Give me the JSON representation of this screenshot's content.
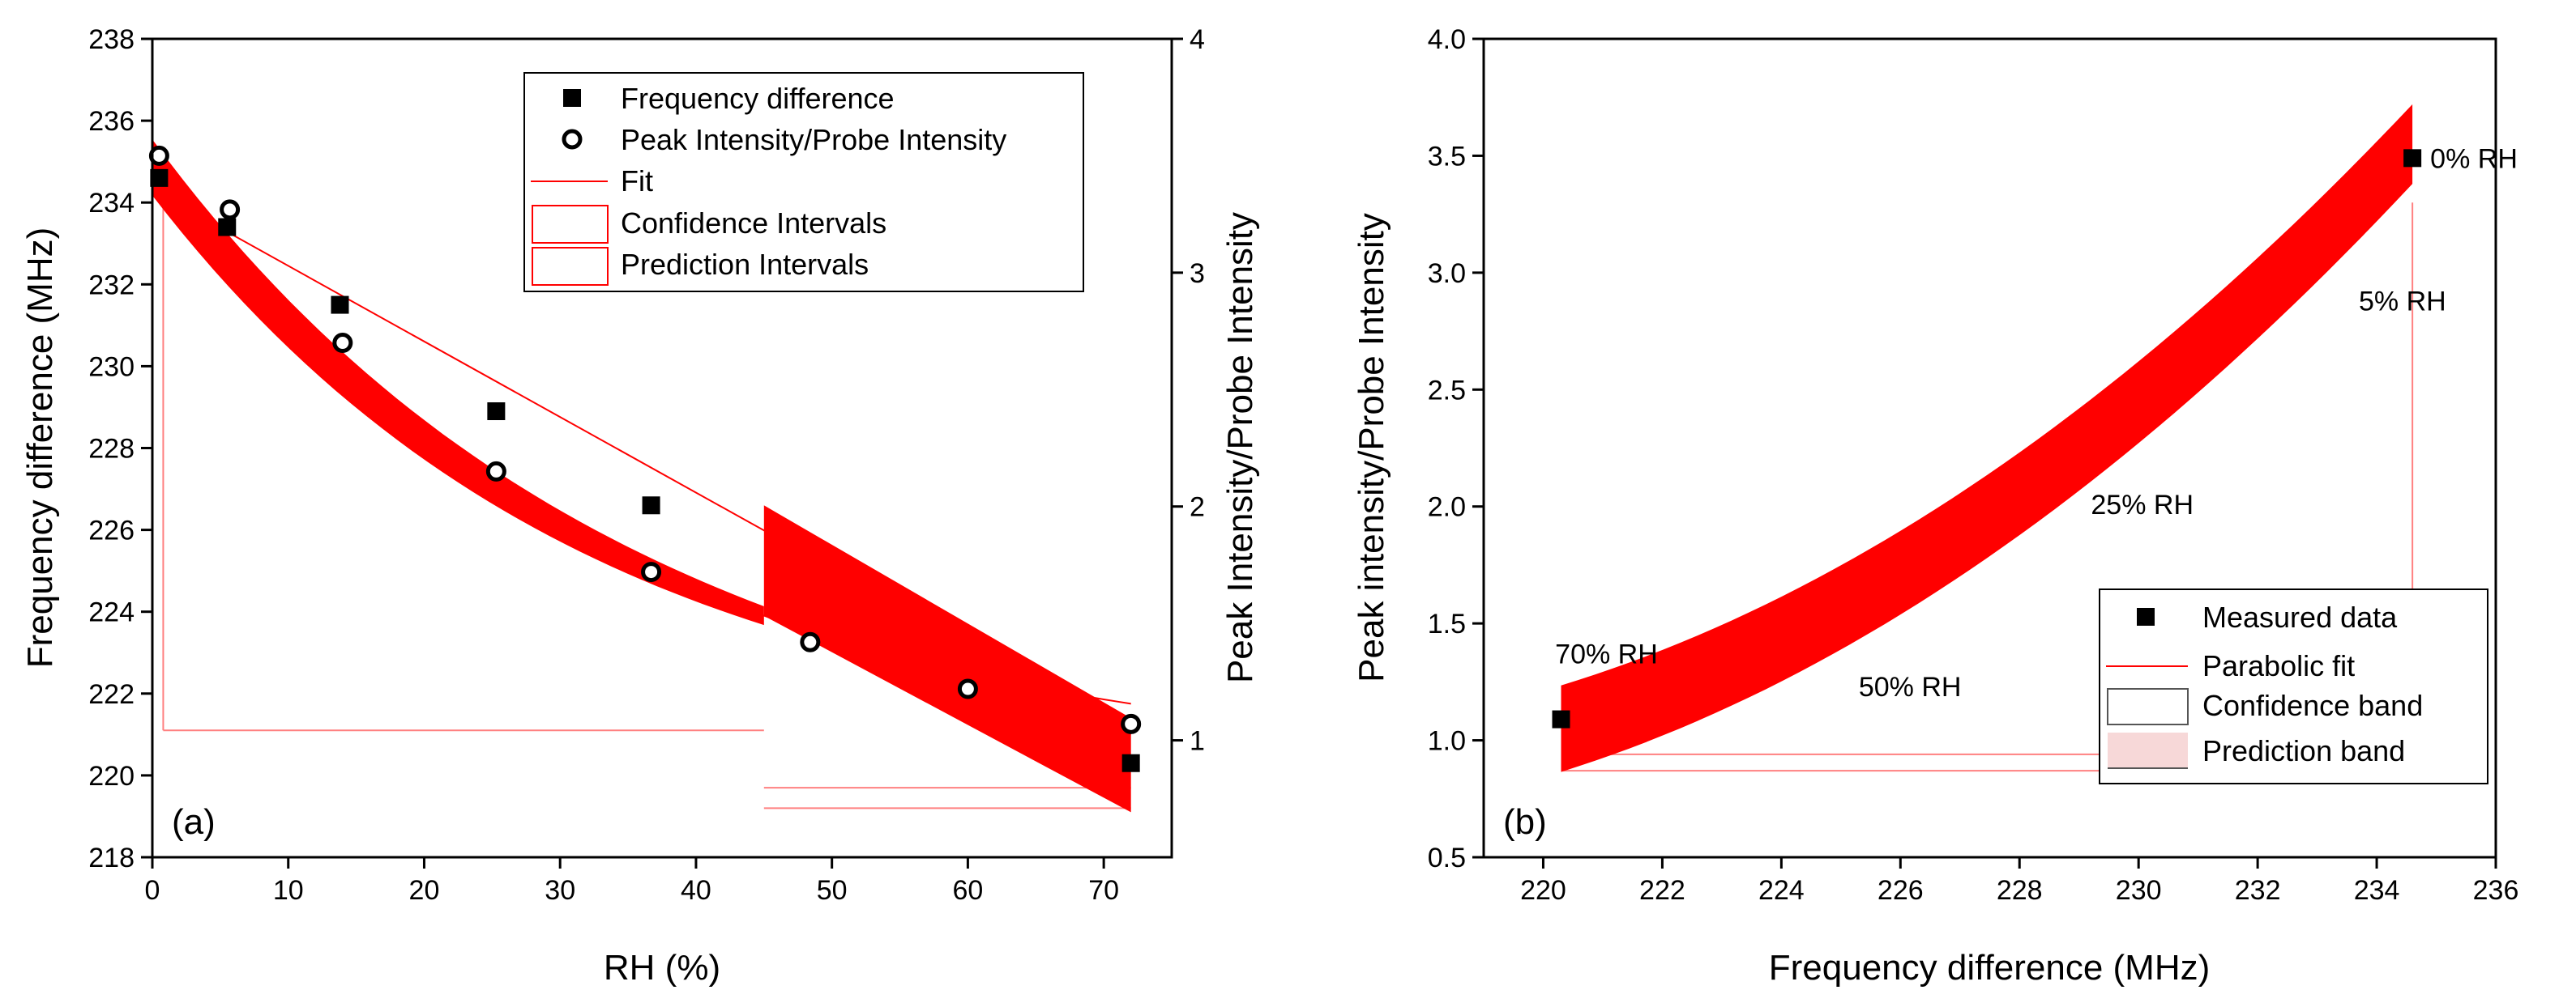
{
  "chart_data": [
    {
      "id": "a",
      "type": "scatter",
      "panel_label": "(a)",
      "xlabel": "RH (%)",
      "ylabel": "Frequency difference (MHz)",
      "y2label": "Peak Intensity/Probe Intensity",
      "xlim": [
        0,
        75
      ],
      "ylim": [
        218,
        238
      ],
      "y2lim": [
        0.5,
        4.0
      ],
      "x_ticks": [
        0,
        10,
        20,
        30,
        40,
        50,
        60,
        70
      ],
      "y_ticks": [
        218,
        220,
        222,
        224,
        226,
        228,
        230,
        232,
        234,
        236,
        238
      ],
      "y2_ticks": [
        1,
        2,
        3,
        4
      ],
      "legend": {
        "position": "top-right",
        "entries": [
          {
            "label": "Frequency difference",
            "symbol": "filled-square"
          },
          {
            "label": "Peak Intensity/Probe Intensity",
            "symbol": "open-circle"
          },
          {
            "label": "Fit",
            "symbol": "line"
          },
          {
            "label": "Confidence Intervals",
            "symbol": "box"
          },
          {
            "label": "Prediction Intervals",
            "symbol": "box"
          }
        ]
      },
      "series": [
        {
          "name": "Frequency difference",
          "axis": "left",
          "x": [
            0.5,
            5.5,
            13.8,
            25.3,
            36.7,
            72.0
          ],
          "y": [
            234.6,
            233.4,
            231.5,
            228.9,
            226.6,
            220.3
          ]
        },
        {
          "name": "Peak Intensity/Probe Intensity",
          "axis": "right",
          "x": [
            0.5,
            5.7,
            14.0,
            25.3,
            36.7,
            48.4,
            60.0,
            72.0
          ],
          "y": [
            3.5,
            3.27,
            2.7,
            2.15,
            1.72,
            1.42,
            1.22,
            1.07
          ]
        }
      ],
      "fit_freq": {
        "x": [
          0,
          72
        ],
        "y": [
          234.3,
          221.0
        ],
        "axis": "left"
      },
      "fit_intensity": {
        "type": "exponential",
        "A": 2.6,
        "k": 0.0297,
        "c": 0.85,
        "x_range": [
          0,
          72
        ],
        "axis": "right"
      },
      "confidence_band_intensity": {
        "x_range": [
          0,
          45
        ],
        "halfwidth_start": 0.12,
        "halfwidth_end": 0.04,
        "axis": "right"
      },
      "confidence_band_freq": {
        "x_range": [
          45,
          72
        ],
        "upper": [
          226.6,
          221.4
        ],
        "lower": [
          223.9,
          219.1
        ],
        "axis": "left"
      },
      "prediction_lines": [
        {
          "axis": "left",
          "x": [
            45,
            72
          ],
          "y": [
            219.7,
            219.7
          ]
        },
        {
          "axis": "left",
          "x": [
            45,
            72
          ],
          "y": [
            219.2,
            219.2
          ]
        },
        {
          "axis": "left",
          "x": [
            0.8,
            45
          ],
          "y": [
            221.1,
            221.1
          ]
        },
        {
          "axis": "left",
          "x": [
            0.8,
            0.8
          ],
          "y": [
            221.1,
            234.2
          ]
        }
      ]
    },
    {
      "id": "b",
      "type": "scatter",
      "panel_label": "(b)",
      "xlabel": "Frequency difference (MHz)",
      "ylabel": "Peak intensity/Probe Intensity",
      "xlim": [
        219,
        236
      ],
      "ylim": [
        0.5,
        4.0
      ],
      "x_ticks": [
        220,
        222,
        224,
        226,
        228,
        230,
        232,
        234,
        236
      ],
      "y_ticks": [
        0.5,
        1.0,
        1.5,
        2.0,
        2.5,
        3.0,
        3.5,
        4.0
      ],
      "y_tick_labels": [
        "0.5",
        "1.0",
        "1.5",
        "2.0",
        "2.5",
        "3.0",
        "3.5",
        "4.0"
      ],
      "legend": {
        "position": "bottom-right",
        "entries": [
          {
            "label": "Measured data",
            "symbol": "filled-square"
          },
          {
            "label": "Parabolic fit",
            "symbol": "line"
          },
          {
            "label": "Confidence band",
            "symbol": "box"
          },
          {
            "label": "Prediction band",
            "symbol": "dotted-box"
          }
        ]
      },
      "series": [
        {
          "name": "Measured data",
          "x": [
            220.3,
            234.6
          ],
          "y": [
            1.09,
            3.49
          ]
        }
      ],
      "band": {
        "type": "parabola",
        "x0": 220.3,
        "x1": 234.6,
        "y_start": 1.05,
        "y_end": 3.55,
        "halfwidth_start": 0.185,
        "halfwidth_end": 0.17
      },
      "annotations": [
        {
          "text": "0% RH",
          "x": 234.9,
          "y": 3.49
        },
        {
          "text": "5% RH",
          "x": 233.7,
          "y": 2.88
        },
        {
          "text": "25% RH",
          "x": 229.2,
          "y": 2.01
        },
        {
          "text": "50% RH",
          "x": 225.3,
          "y": 1.23
        },
        {
          "text": "70% RH",
          "x": 220.2,
          "y": 1.37
        }
      ],
      "prediction_lines": [
        {
          "x": [
            220.3,
            234.6
          ],
          "y": [
            0.94,
            0.94
          ]
        },
        {
          "x": [
            220.3,
            234.6
          ],
          "y": [
            0.87,
            0.87
          ]
        },
        {
          "x": [
            234.6,
            234.6
          ],
          "y": [
            1.52,
            3.3
          ]
        }
      ]
    }
  ]
}
